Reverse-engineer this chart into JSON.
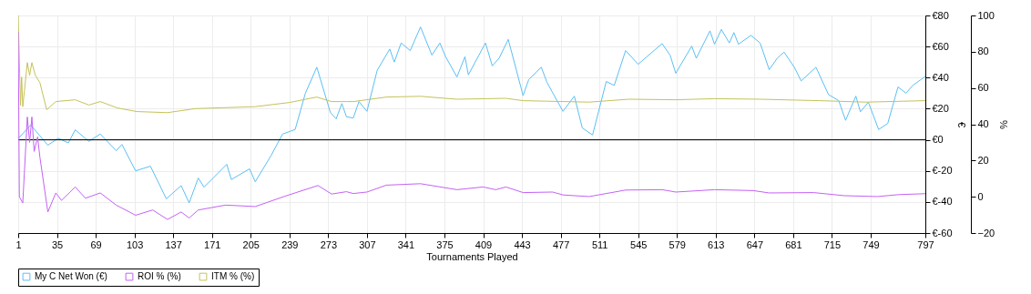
{
  "chart_data": {
    "type": "line",
    "xlabel": "Tournaments Played",
    "ylabel": "€",
    "y2label": "%",
    "xlim": [
      1,
      797
    ],
    "xticks": [
      1,
      35,
      69,
      103,
      137,
      171,
      205,
      239,
      273,
      307,
      341,
      375,
      409,
      443,
      477,
      511,
      545,
      579,
      613,
      647,
      681,
      715,
      749,
      797
    ],
    "ylim": [
      -60,
      80
    ],
    "yticks": [
      {
        "value": -60,
        "label": "€-60"
      },
      {
        "value": -40,
        "label": "€-40"
      },
      {
        "value": -20,
        "label": "€-20"
      },
      {
        "value": 0,
        "label": "€0"
      },
      {
        "value": 20,
        "label": "€20"
      },
      {
        "value": 40,
        "label": "€40"
      },
      {
        "value": 60,
        "label": "€60"
      },
      {
        "value": 80,
        "label": "€80"
      }
    ],
    "y2lim": [
      -20,
      100
    ],
    "y2ticks": [
      -20,
      0,
      20,
      40,
      60,
      80,
      100
    ],
    "grid": true,
    "legend": "bottom left",
    "line_style": "solid",
    "marker": "none",
    "ref_lines": [
      {
        "axis": "y",
        "value": 0,
        "color": "#000000"
      }
    ],
    "series": [
      {
        "name": "My C Net Won (€)",
        "color": "#5bbff5",
        "x": [
          1,
          12,
          27,
          36,
          45,
          51,
          63,
          73,
          87,
          92,
          104,
          117,
          131,
          144,
          151,
          159,
          164,
          184,
          188,
          204,
          209,
          223,
          233,
          244,
          253,
          263,
          275,
          280,
          285,
          289,
          295,
          300,
          307,
          316,
          327,
          331,
          337,
          345,
          354,
          364,
          371,
          376,
          386,
          393,
          396,
          411,
          417,
          423,
          431,
          444,
          449,
          460,
          465,
          479,
          489,
          496,
          505,
          517,
          524,
          534,
          545,
          566,
          573,
          578,
          592,
          596,
          608,
          612,
          618,
          625,
          629,
          633,
          644,
          652,
          660,
          667,
          673,
          682,
          688,
          701,
          712,
          721,
          727,
          736,
          740,
          747,
          756,
          764,
          773,
          780,
          786,
          797
        ],
        "values": [
          0.8,
          9.5,
          -3.5,
          1,
          -2,
          6.4,
          -1,
          3.7,
          -7,
          -3,
          -20,
          -17,
          -38,
          -29.5,
          -40.6,
          -24.6,
          -30.5,
          -15.8,
          -25.6,
          -18.7,
          -27,
          -10,
          3.7,
          6.6,
          30,
          46.7,
          17.4,
          13.5,
          23.3,
          14.8,
          14,
          24.6,
          18.3,
          44.7,
          58.4,
          50,
          62.3,
          57.4,
          72.6,
          54.5,
          62.3,
          53.5,
          40.4,
          53.5,
          41.8,
          62.3,
          47.6,
          52.5,
          64.6,
          28.5,
          38.8,
          46.7,
          36.9,
          18.3,
          28.1,
          7.6,
          3.1,
          37.5,
          35,
          57.4,
          48.6,
          61.9,
          54.5,
          42.8,
          60.3,
          52.5,
          70.1,
          61.5,
          71,
          62.3,
          69,
          61.5,
          67.2,
          62.3,
          45.1,
          52.5,
          56.4,
          46.7,
          37.9,
          46.7,
          29.1,
          25.2,
          12.5,
          28.1,
          18,
          24.2,
          6.6,
          10.5,
          34,
          30,
          35,
          40.8
        ]
      },
      {
        "name": "ROI % (%)",
        "color": "#c462f5",
        "axis": "y2",
        "x": [
          1,
          2,
          5,
          9,
          11,
          13,
          15,
          18,
          20,
          27,
          34,
          39,
          51,
          60,
          73,
          87,
          104,
          119,
          132,
          144,
          151,
          159,
          183,
          209,
          236,
          264,
          276,
          289,
          295,
          307,
          324,
          354,
          386,
          409,
          420,
          429,
          444,
          470,
          479,
          502,
          534,
          566,
          578,
          612,
          646,
          660,
          699,
          726,
          755,
          774,
          797
        ],
        "values": [
          91,
          0,
          -3.4,
          44,
          30,
          44,
          25,
          33,
          22,
          -8.4,
          2.1,
          -2,
          5.4,
          -0.8,
          2.1,
          -4.6,
          -10.2,
          -7.3,
          -12.5,
          -8.4,
          -11.7,
          -7.3,
          -4.6,
          -5.4,
          0.5,
          6.2,
          1.5,
          2.8,
          1.8,
          2.6,
          6.4,
          7.2,
          3.9,
          5.4,
          3.9,
          5.4,
          2.3,
          2.6,
          1,
          0.1,
          3.7,
          3.9,
          2.6,
          3.9,
          3.4,
          2.1,
          2.3,
          0.6,
          0.1,
          1.2,
          1.7
        ]
      },
      {
        "name": "ITM % (%)",
        "color": "#c5c25a",
        "axis": "y2",
        "x": [
          1,
          3,
          4,
          5,
          9,
          11,
          13,
          16,
          20,
          26,
          34,
          51,
          63,
          73,
          88,
          105,
          132,
          156,
          209,
          239,
          263,
          276,
          289,
          295,
          324,
          354,
          386,
          429,
          444,
          502,
          537,
          578,
          612,
          652,
          704,
          745,
          797
        ],
        "values": [
          100,
          50.3,
          66,
          49.7,
          74,
          67,
          74,
          67,
          63,
          48,
          52.5,
          53.5,
          50.6,
          52.5,
          49,
          47,
          46.4,
          48.6,
          49.7,
          52,
          55,
          52.5,
          52.5,
          52.5,
          55,
          55.4,
          53.8,
          54.3,
          53,
          52.2,
          53.8,
          53.5,
          54.1,
          53.8,
          53,
          52.2,
          53
        ]
      }
    ]
  }
}
